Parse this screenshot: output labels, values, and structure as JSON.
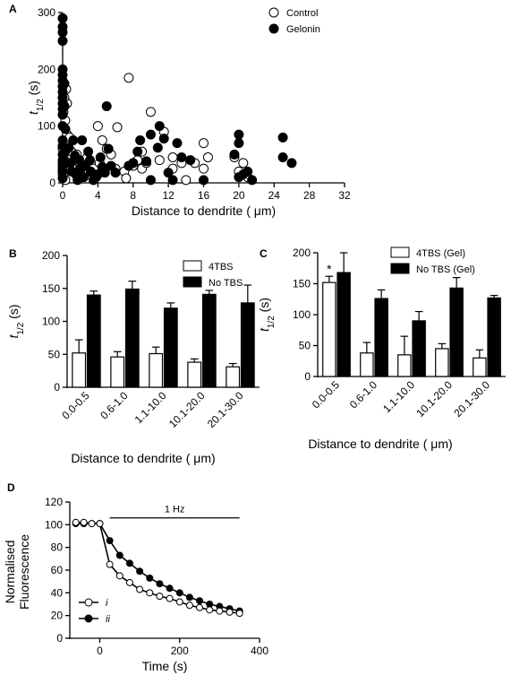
{
  "chart_data": [
    {
      "panel": "A",
      "type": "scatter",
      "xlabel": "Distance to dendrite ( μm)",
      "ylabel_main": "t",
      "ylabel_sub": "1/2",
      "ylabel_unit": " (s)",
      "xlim": [
        0,
        32
      ],
      "ylim": [
        0,
        300
      ],
      "xticks": [
        0,
        4,
        8,
        12,
        16,
        20,
        24,
        28,
        32
      ],
      "yticks": [
        0,
        100,
        200,
        300
      ],
      "legend_position": "top-right",
      "series": [
        {
          "name": "Control",
          "marker": "open-circle",
          "points": [
            [
              0.0,
              25
            ],
            [
              0.0,
              35
            ],
            [
              0.1,
              45
            ],
            [
              0.0,
              60
            ],
            [
              0.2,
              70
            ],
            [
              0.0,
              15
            ],
            [
              0.1,
              10
            ],
            [
              0.3,
              20
            ],
            [
              0.3,
              110
            ],
            [
              0.5,
              140
            ],
            [
              0.4,
              165
            ],
            [
              0.2,
              150
            ],
            [
              0.1,
              125
            ],
            [
              0.5,
              85
            ],
            [
              0.8,
              80
            ],
            [
              0.3,
              5
            ],
            [
              0.6,
              30
            ],
            [
              0.9,
              22
            ],
            [
              1.0,
              55
            ],
            [
              1.3,
              40
            ],
            [
              1.6,
              50
            ],
            [
              1.5,
              18
            ],
            [
              2.0,
              30
            ],
            [
              2.2,
              35
            ],
            [
              2.5,
              15
            ],
            [
              2.8,
              45
            ],
            [
              3.0,
              20
            ],
            [
              3.5,
              25
            ],
            [
              4.0,
              100
            ],
            [
              4.5,
              75
            ],
            [
              5.0,
              60
            ],
            [
              4.2,
              35
            ],
            [
              5.5,
              50
            ],
            [
              6.0,
              25
            ],
            [
              6.2,
              98
            ],
            [
              7.0,
              20
            ],
            [
              7.2,
              8
            ],
            [
              8.0,
              30
            ],
            [
              8.5,
              40
            ],
            [
              9.0,
              25
            ],
            [
              9.5,
              35
            ],
            [
              9.0,
              55
            ],
            [
              10.0,
              125
            ],
            [
              11.0,
              40
            ],
            [
              11.5,
              90
            ],
            [
              12.5,
              25
            ],
            [
              12.5,
              45
            ],
            [
              13.5,
              35
            ],
            [
              14.0,
              5
            ],
            [
              15.0,
              35
            ],
            [
              16.0,
              70
            ],
            [
              16.5,
              45
            ],
            [
              16.0,
              25
            ],
            [
              19.5,
              45
            ],
            [
              20.0,
              20
            ],
            [
              20.5,
              35
            ],
            [
              21.0,
              10
            ],
            [
              7.5,
              185
            ]
          ]
        },
        {
          "name": "Gelonin",
          "marker": "filled-circle",
          "points": [
            [
              0.0,
              290
            ],
            [
              0.0,
              275
            ],
            [
              0.0,
              265
            ],
            [
              0.0,
              250
            ],
            [
              0.0,
              200
            ],
            [
              0.0,
              190
            ],
            [
              0.0,
              180
            ],
            [
              0.0,
              170
            ],
            [
              0.0,
              160
            ],
            [
              0.0,
              150
            ],
            [
              0.0,
              140
            ],
            [
              0.0,
              130
            ],
            [
              0.0,
              120
            ],
            [
              0.0,
              100
            ],
            [
              0.0,
              75
            ],
            [
              0.0,
              65
            ],
            [
              0.0,
              50
            ],
            [
              0.0,
              40
            ],
            [
              0.0,
              30
            ],
            [
              0.0,
              20
            ],
            [
              0.0,
              8
            ],
            [
              0.2,
              175
            ],
            [
              0.2,
              135
            ],
            [
              0.3,
              95
            ],
            [
              0.3,
              55
            ],
            [
              0.2,
              38
            ],
            [
              0.7,
              62
            ],
            [
              0.9,
              35
            ],
            [
              1.0,
              20
            ],
            [
              1.2,
              75
            ],
            [
              1.4,
              48
            ],
            [
              1.5,
              15
            ],
            [
              1.7,
              5
            ],
            [
              1.9,
              40
            ],
            [
              2.0,
              25
            ],
            [
              2.2,
              75
            ],
            [
              2.4,
              10
            ],
            [
              2.6,
              30
            ],
            [
              2.9,
              55
            ],
            [
              3.1,
              40
            ],
            [
              3.2,
              20
            ],
            [
              3.5,
              5
            ],
            [
              3.8,
              10
            ],
            [
              4.0,
              15
            ],
            [
              4.3,
              45
            ],
            [
              4.5,
              28
            ],
            [
              4.8,
              18
            ],
            [
              5.0,
              135
            ],
            [
              5.2,
              60
            ],
            [
              5.5,
              30
            ],
            [
              6.0,
              18
            ],
            [
              7.5,
              30
            ],
            [
              8.0,
              35
            ],
            [
              8.5,
              55
            ],
            [
              8.8,
              75
            ],
            [
              9.5,
              38
            ],
            [
              10.0,
              85
            ],
            [
              10.0,
              5
            ],
            [
              10.8,
              62
            ],
            [
              11.0,
              100
            ],
            [
              11.5,
              78
            ],
            [
              12.0,
              18
            ],
            [
              12.5,
              5
            ],
            [
              13.0,
              70
            ],
            [
              13.5,
              45
            ],
            [
              14.5,
              40
            ],
            [
              16.0,
              5
            ],
            [
              19.5,
              50
            ],
            [
              20.0,
              85
            ],
            [
              20.0,
              70
            ],
            [
              20.0,
              10
            ],
            [
              20.5,
              15
            ],
            [
              21.0,
              20
            ],
            [
              21.5,
              5
            ],
            [
              25.0,
              80
            ],
            [
              25.0,
              45
            ],
            [
              26.0,
              35
            ]
          ]
        }
      ]
    },
    {
      "panel": "B",
      "type": "bar",
      "xlabel": "Distance to dendrite ( μm)",
      "ylabel_main": "t",
      "ylabel_sub": "1/2",
      "ylabel_unit": " (s)",
      "ylim": [
        0,
        200
      ],
      "yticks": [
        0,
        50,
        100,
        150,
        200
      ],
      "categories": [
        "0.0-0.5",
        "0.6-1.0",
        "1.1-10.0",
        "10.1-20.0",
        "20.1-30.0"
      ],
      "legend_position": "top-right",
      "series": [
        {
          "name": "4TBS",
          "fill": "open",
          "values": [
            52,
            46,
            51,
            38,
            31
          ],
          "errors": [
            20,
            8,
            10,
            5,
            5
          ]
        },
        {
          "name": "No TBS",
          "fill": "filled",
          "values": [
            140,
            149,
            120,
            141,
            128
          ],
          "errors": [
            6,
            12,
            8,
            6,
            27
          ]
        }
      ]
    },
    {
      "panel": "C",
      "type": "bar",
      "xlabel": "Distance to dendrite ( μm)",
      "ylabel_main": "t",
      "ylabel_sub": "1/2",
      "ylabel_unit": " (s)",
      "ylim": [
        0,
        200
      ],
      "yticks": [
        0,
        50,
        100,
        150,
        200
      ],
      "categories": [
        "0.0-0.5",
        "0.6-1.0",
        "1.1-10.0",
        "10.1-20.0",
        "20.1-30.0"
      ],
      "legend_position": "top-right",
      "annotation": "*",
      "series": [
        {
          "name": "4TBS (Gel)",
          "fill": "open",
          "values": [
            152,
            38,
            35,
            45,
            30
          ],
          "errors": [
            10,
            17,
            30,
            8,
            13
          ]
        },
        {
          "name": "No TBS (Gel)",
          "fill": "filled",
          "values": [
            168,
            126,
            90,
            143,
            127
          ],
          "errors": [
            32,
            14,
            15,
            17,
            4
          ]
        }
      ]
    },
    {
      "panel": "D",
      "type": "line",
      "xlabel": "Time (s)",
      "ylabel_lines": [
        "Normalised",
        "Fluorescence"
      ],
      "xlim": [
        -75,
        400
      ],
      "ylim": [
        0,
        120
      ],
      "xticks": [
        0,
        200,
        400
      ],
      "yticks": [
        0,
        20,
        40,
        60,
        80,
        100,
        120
      ],
      "stimulus_label": "1 Hz",
      "stimulus_range": [
        25,
        350
      ],
      "legend_position": "bottom-left",
      "series": [
        {
          "name": "i",
          "marker": "open-circle",
          "x": [
            -60,
            -40,
            -20,
            0,
            25,
            50,
            75,
            100,
            125,
            150,
            175,
            200,
            225,
            250,
            275,
            300,
            325,
            350
          ],
          "y": [
            102,
            102,
            101,
            101,
            65,
            55,
            49,
            43,
            40,
            37,
            35,
            32,
            29,
            27,
            25,
            24,
            23,
            22
          ]
        },
        {
          "name": "ii",
          "marker": "filled-circle",
          "x": [
            -60,
            -40,
            -20,
            0,
            25,
            50,
            75,
            100,
            125,
            150,
            175,
            200,
            225,
            250,
            275,
            300,
            325,
            350
          ],
          "y": [
            101,
            101,
            101,
            101,
            86,
            73,
            66,
            59,
            53,
            48,
            44,
            40,
            36,
            33,
            30,
            28,
            26,
            24
          ]
        }
      ]
    }
  ]
}
